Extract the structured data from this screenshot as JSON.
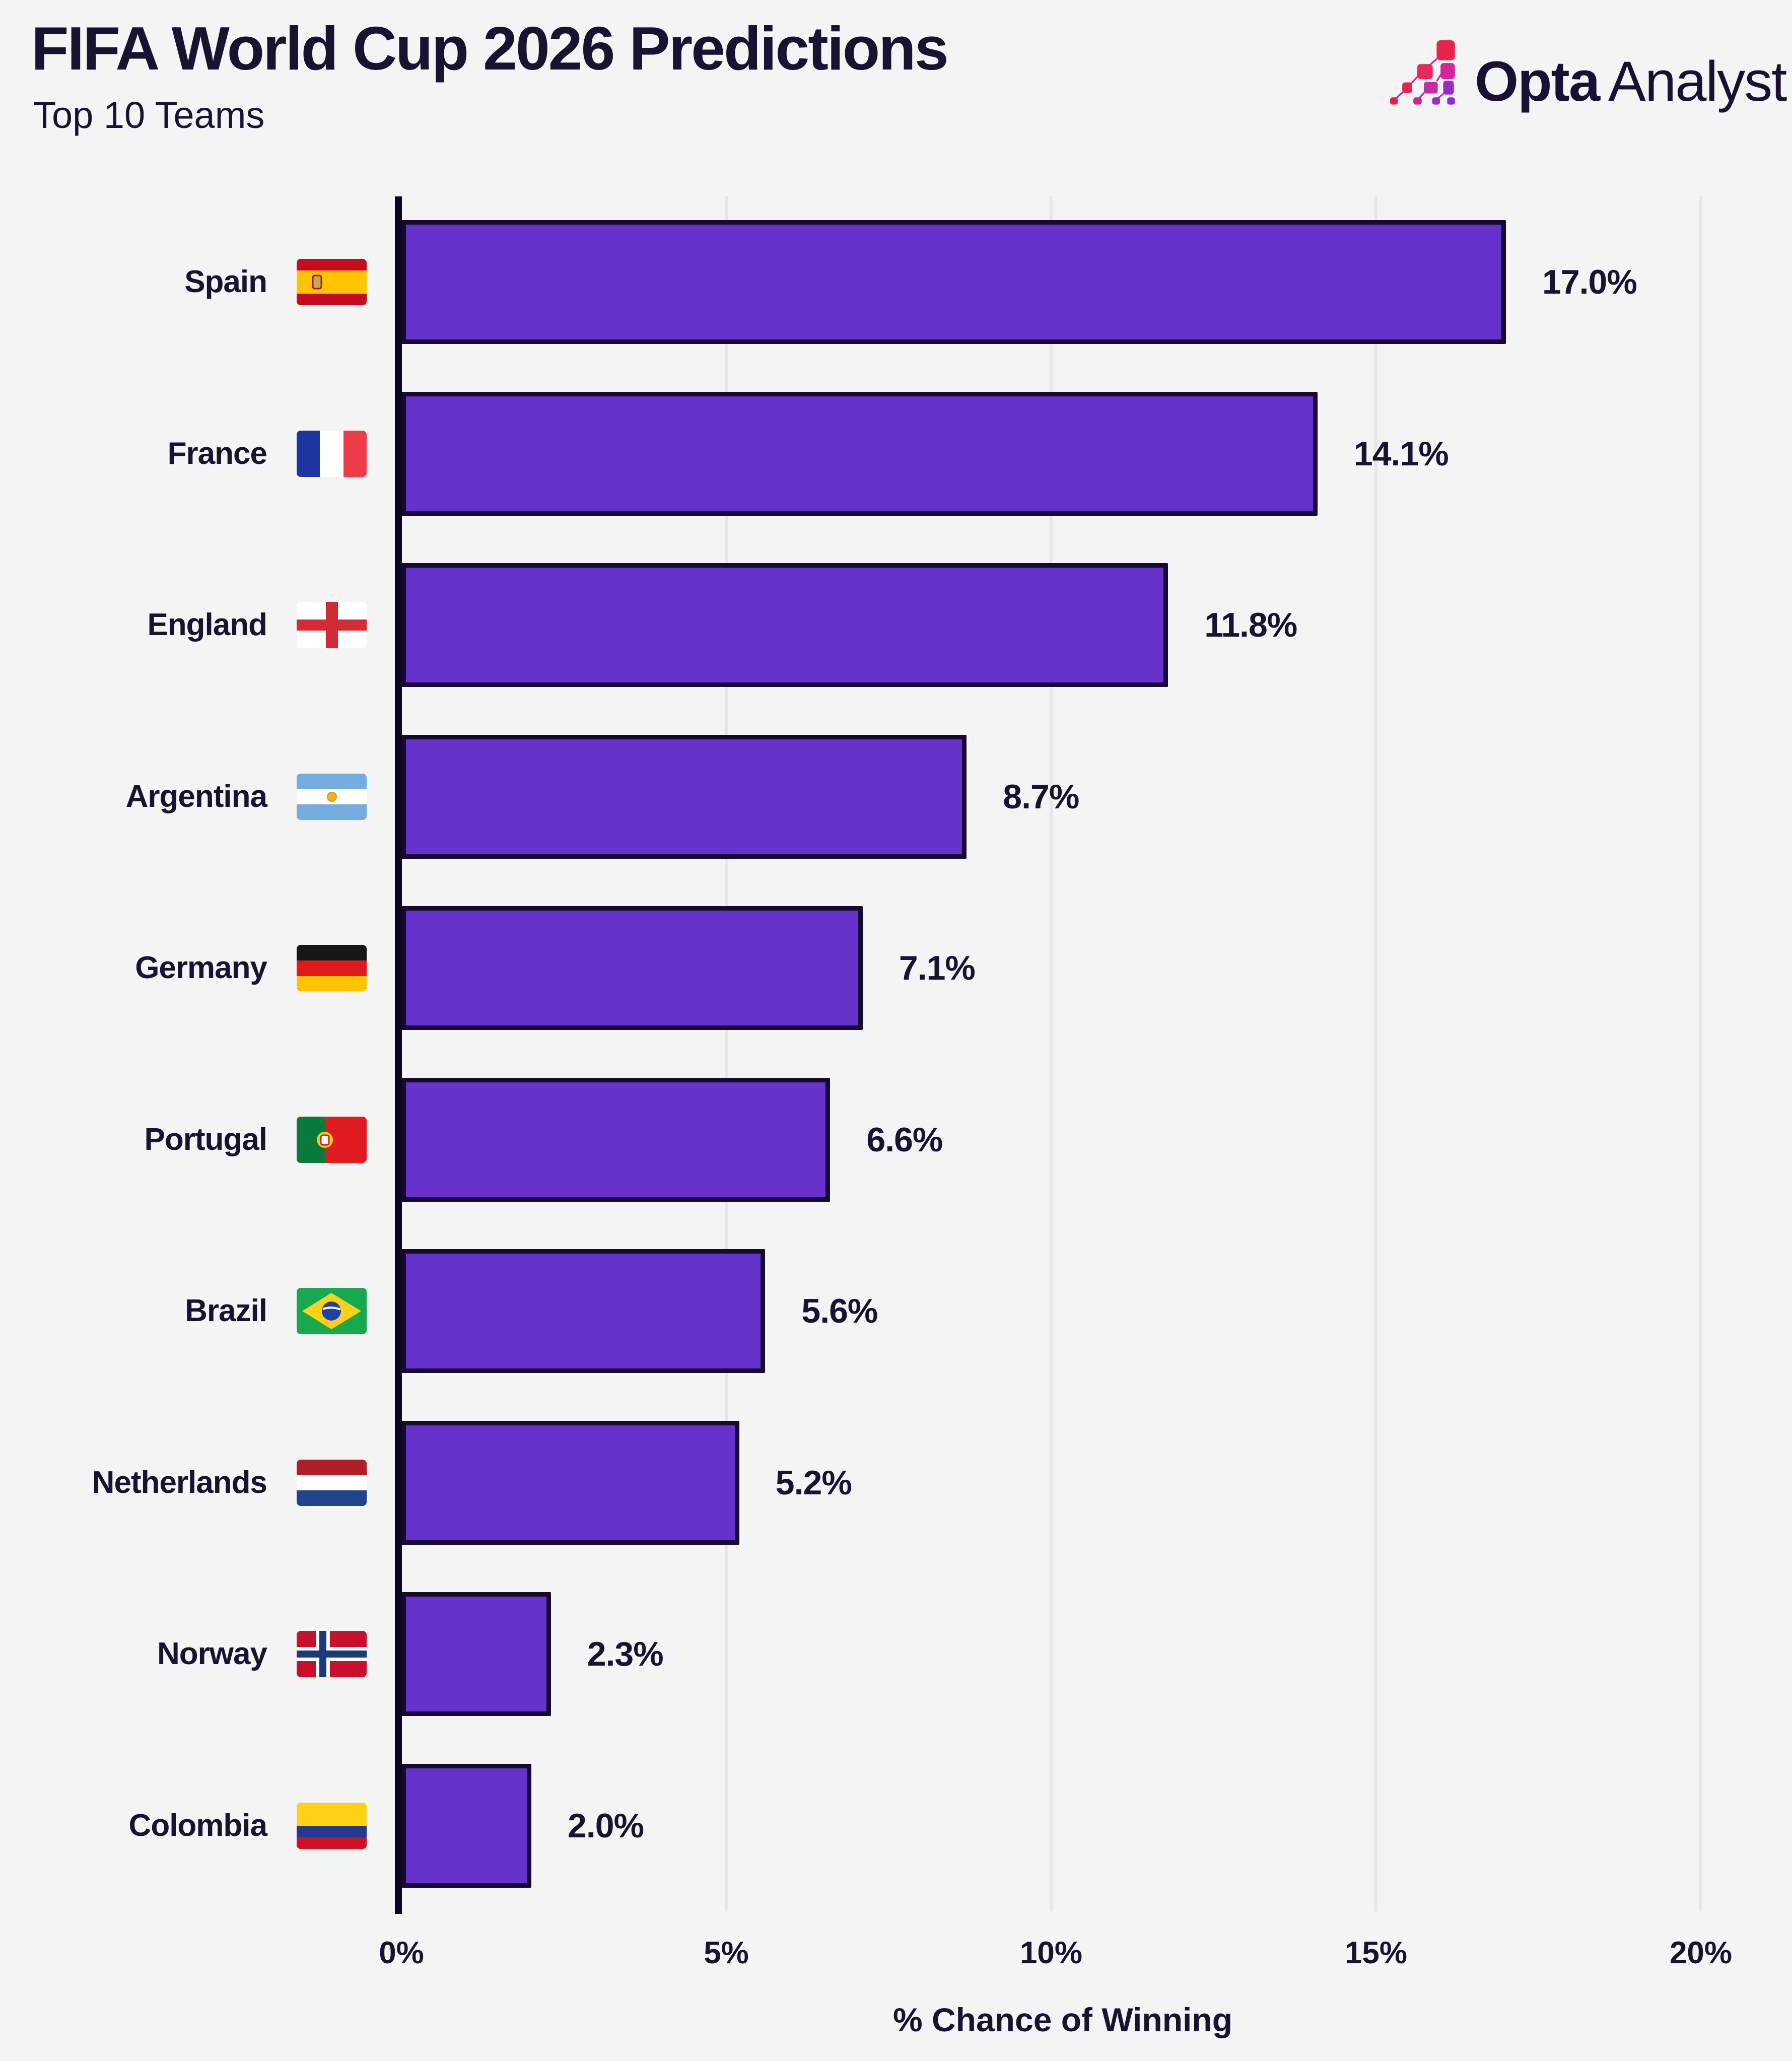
{
  "header": {
    "title": "FIFA World Cup 2026 Predictions",
    "subtitle": "Top 10 Teams"
  },
  "logo": {
    "brand_bold": "Opta",
    "brand_light": "Analyst",
    "mark_colors": [
      "#e8234e",
      "#e9285e",
      "#d2269b",
      "#e42352",
      "#c62ba4",
      "#9d27ce",
      "#e02350",
      "#d02590",
      "#8e2bdc"
    ]
  },
  "chart_data": {
    "type": "bar",
    "orientation": "horizontal",
    "title": "FIFA World Cup 2026 Predictions",
    "subtitle": "Top 10 Teams",
    "categories": [
      "Spain",
      "France",
      "England",
      "Argentina",
      "Germany",
      "Portugal",
      "Brazil",
      "Netherlands",
      "Norway",
      "Colombia"
    ],
    "values": [
      17.0,
      14.1,
      11.8,
      8.7,
      7.1,
      6.6,
      5.6,
      5.2,
      2.3,
      2.0
    ],
    "value_labels": [
      "17.0%",
      "14.1%",
      "11.8%",
      "8.7%",
      "7.1%",
      "6.6%",
      "5.6%",
      "5.2%",
      "2.3%",
      "2.0%"
    ],
    "flags": [
      "flag-spain",
      "flag-france",
      "flag-england",
      "flag-argentina",
      "flag-germany",
      "flag-portugal",
      "flag-brazil",
      "flag-netherlands",
      "flag-norway",
      "flag-colombia"
    ],
    "xlabel": "% Chance of Winning",
    "xlim": [
      0,
      20
    ],
    "xticks": [
      "0%",
      "5%",
      "10%",
      "15%",
      "20%"
    ],
    "xtick_values": [
      0,
      5,
      10,
      15,
      20
    ],
    "grid": "vertical",
    "legend": "none",
    "colors": {
      "bar_fill": "#6532cc",
      "bar_border": "#170a30",
      "axis_line": "#0d0620",
      "gridline": "#e7e5e9",
      "text": "#191231",
      "background": "#f5f4f4"
    }
  }
}
